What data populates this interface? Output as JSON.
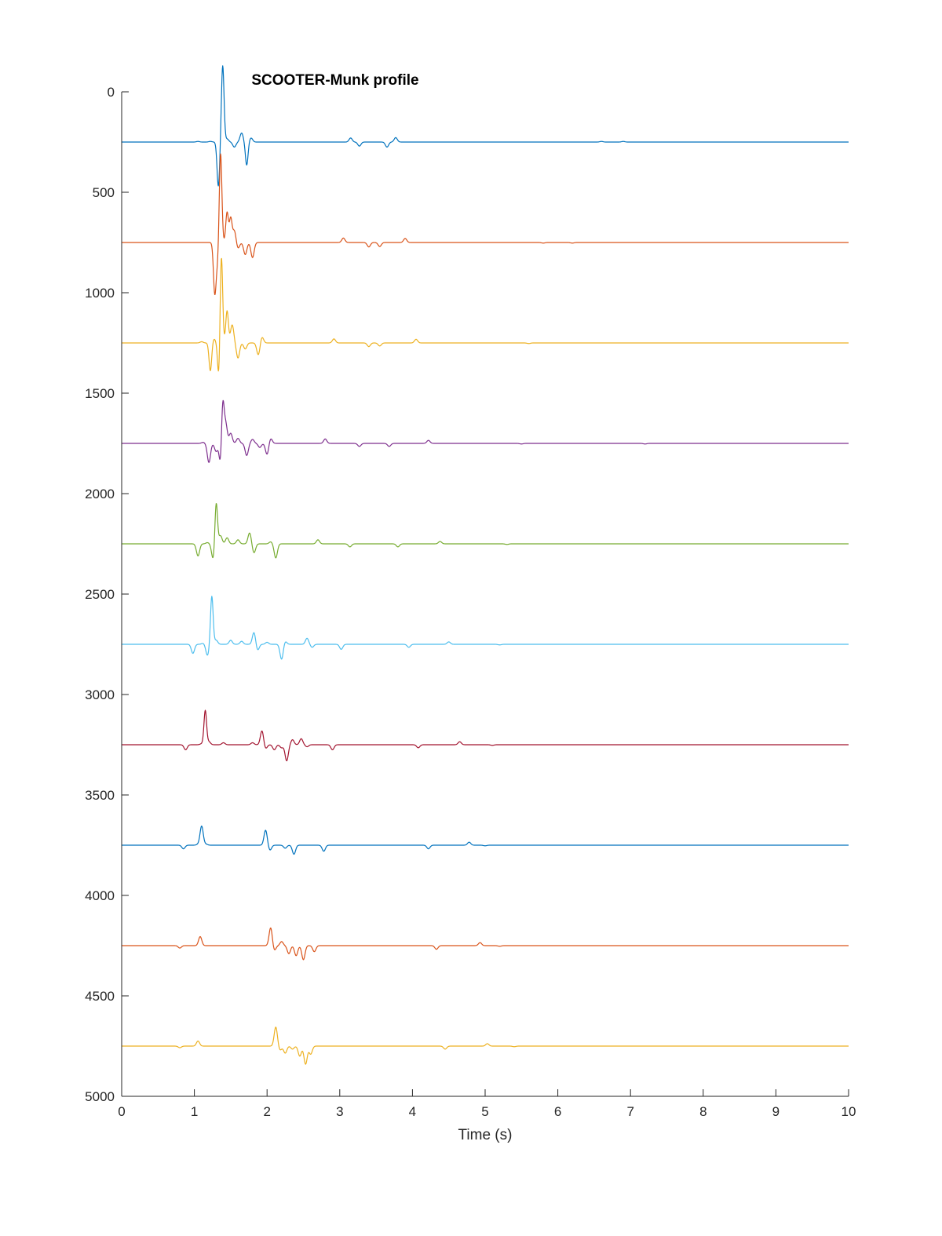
{
  "chart_data": {
    "type": "line",
    "title": "SCOOTER-Munk profile",
    "xlabel": "Time (s)",
    "ylabel": "",
    "xlim": [
      0,
      10
    ],
    "ylim": [
      0,
      5000
    ],
    "y_reversed": true,
    "grid": false,
    "x_ticks": [
      "0",
      "1",
      "2",
      "3",
      "4",
      "5",
      "6",
      "7",
      "8",
      "9",
      "10"
    ],
    "y_ticks": [
      "0",
      "500",
      "1000",
      "1500",
      "2000",
      "2500",
      "3000",
      "3500",
      "4000",
      "4500",
      "5000"
    ],
    "x_tick_values": [
      0,
      1,
      2,
      3,
      4,
      5,
      6,
      7,
      8,
      9,
      10
    ],
    "y_tick_values": [
      0,
      500,
      1000,
      1500,
      2000,
      2500,
      3000,
      3500,
      4000,
      4500,
      5000
    ],
    "series": [
      {
        "baseline": 250,
        "color": "#0072BD",
        "events": [
          [
            1.05,
            -3
          ],
          [
            1.22,
            -3
          ],
          [
            1.33,
            220
          ],
          [
            1.39,
            -380
          ],
          [
            1.45,
            -15
          ],
          [
            1.55,
            25
          ],
          [
            1.65,
            -45
          ],
          [
            1.72,
            115
          ],
          [
            1.78,
            -20
          ],
          [
            3.15,
            -20
          ],
          [
            3.27,
            20
          ],
          [
            3.65,
            25
          ],
          [
            3.77,
            -22
          ],
          [
            6.6,
            -3
          ],
          [
            6.9,
            -3
          ]
        ]
      },
      {
        "baseline": 750,
        "color": "#D95319",
        "events": [
          [
            1.28,
            240
          ],
          [
            1.32,
            100
          ],
          [
            1.36,
            -460
          ],
          [
            1.45,
            -150
          ],
          [
            1.5,
            -120
          ],
          [
            1.55,
            -60
          ],
          [
            1.6,
            30
          ],
          [
            1.7,
            60
          ],
          [
            1.8,
            75
          ],
          [
            3.05,
            -22
          ],
          [
            3.4,
            22
          ],
          [
            3.55,
            20
          ],
          [
            3.9,
            -20
          ],
          [
            5.8,
            3
          ],
          [
            6.2,
            3
          ]
        ]
      },
      {
        "baseline": 1250,
        "color": "#EDB120",
        "events": [
          [
            1.1,
            -6
          ],
          [
            1.22,
            140
          ],
          [
            1.27,
            -20
          ],
          [
            1.34,
            210
          ],
          [
            1.37,
            -470
          ],
          [
            1.45,
            -160
          ],
          [
            1.52,
            -90
          ],
          [
            1.6,
            75
          ],
          [
            1.7,
            30
          ],
          [
            1.88,
            60
          ],
          [
            1.93,
            -30
          ],
          [
            2.92,
            -20
          ],
          [
            3.4,
            18
          ],
          [
            3.55,
            15
          ],
          [
            4.05,
            -18
          ],
          [
            5.6,
            3
          ]
        ]
      },
      {
        "baseline": 1750,
        "color": "#7E2F8E",
        "events": [
          [
            1.12,
            -5
          ],
          [
            1.2,
            95
          ],
          [
            1.3,
            40
          ],
          [
            1.36,
            110
          ],
          [
            1.39,
            -210
          ],
          [
            1.43,
            -100
          ],
          [
            1.5,
            -50
          ],
          [
            1.6,
            -25
          ],
          [
            1.72,
            60
          ],
          [
            1.8,
            -20
          ],
          [
            1.9,
            20
          ],
          [
            2.0,
            55
          ],
          [
            2.05,
            -25
          ],
          [
            2.8,
            -22
          ],
          [
            3.27,
            15
          ],
          [
            3.68,
            15
          ],
          [
            4.22,
            -15
          ],
          [
            5.5,
            3
          ],
          [
            7.2,
            3
          ]
        ]
      },
      {
        "baseline": 2250,
        "color": "#77AC30",
        "events": [
          [
            1.05,
            60
          ],
          [
            1.18,
            -6
          ],
          [
            1.26,
            80
          ],
          [
            1.3,
            -215
          ],
          [
            1.36,
            -40
          ],
          [
            1.45,
            -30
          ],
          [
            1.6,
            -20
          ],
          [
            1.76,
            -55
          ],
          [
            1.82,
            45
          ],
          [
            2.05,
            -10
          ],
          [
            2.12,
            70
          ],
          [
            2.7,
            -20
          ],
          [
            3.14,
            15
          ],
          [
            3.8,
            15
          ],
          [
            4.38,
            -12
          ],
          [
            5.3,
            3
          ]
        ]
      },
      {
        "baseline": 2750,
        "color": "#4DBEEE",
        "events": [
          [
            0.98,
            45
          ],
          [
            1.12,
            -5
          ],
          [
            1.18,
            55
          ],
          [
            1.24,
            -240
          ],
          [
            1.3,
            -20
          ],
          [
            1.5,
            -20
          ],
          [
            1.65,
            -15
          ],
          [
            1.82,
            -60
          ],
          [
            1.87,
            30
          ],
          [
            2.0,
            -10
          ],
          [
            2.2,
            75
          ],
          [
            2.25,
            -15
          ],
          [
            2.55,
            -30
          ],
          [
            2.62,
            15
          ],
          [
            3.02,
            25
          ],
          [
            3.95,
            15
          ],
          [
            4.5,
            -12
          ],
          [
            5.2,
            3
          ]
        ]
      },
      {
        "baseline": 3250,
        "color": "#A2142F",
        "events": [
          [
            0.88,
            25
          ],
          [
            1.1,
            -5
          ],
          [
            1.15,
            -170
          ],
          [
            1.2,
            -15
          ],
          [
            1.4,
            -10
          ],
          [
            1.8,
            -10
          ],
          [
            1.93,
            -70
          ],
          [
            1.98,
            20
          ],
          [
            2.1,
            25
          ],
          [
            2.2,
            15
          ],
          [
            2.27,
            80
          ],
          [
            2.35,
            -25
          ],
          [
            2.47,
            -30
          ],
          [
            2.55,
            10
          ],
          [
            2.9,
            25
          ],
          [
            4.08,
            15
          ],
          [
            4.65,
            -15
          ],
          [
            5.1,
            3
          ]
        ]
      },
      {
        "baseline": 3750,
        "color": "#0072BD",
        "events": [
          [
            0.85,
            18
          ],
          [
            1.05,
            -4
          ],
          [
            1.1,
            -95
          ],
          [
            1.16,
            -5
          ],
          [
            1.98,
            -75
          ],
          [
            2.04,
            25
          ],
          [
            2.25,
            15
          ],
          [
            2.37,
            45
          ],
          [
            2.78,
            30
          ],
          [
            4.22,
            18
          ],
          [
            4.78,
            -15
          ],
          [
            5.0,
            3
          ]
        ]
      },
      {
        "baseline": 4250,
        "color": "#D95319",
        "events": [
          [
            0.8,
            12
          ],
          [
            1.08,
            -45
          ],
          [
            2.05,
            -90
          ],
          [
            2.1,
            25
          ],
          [
            2.2,
            -20
          ],
          [
            2.3,
            40
          ],
          [
            2.4,
            50
          ],
          [
            2.5,
            70
          ],
          [
            2.65,
            30
          ],
          [
            4.33,
            18
          ],
          [
            4.93,
            -15
          ],
          [
            5.2,
            3
          ]
        ]
      },
      {
        "baseline": 4750,
        "color": "#EDB120",
        "events": [
          [
            0.8,
            8
          ],
          [
            1.05,
            -25
          ],
          [
            2.12,
            -95
          ],
          [
            2.18,
            20
          ],
          [
            2.25,
            35
          ],
          [
            2.35,
            15
          ],
          [
            2.45,
            50
          ],
          [
            2.53,
            90
          ],
          [
            2.6,
            40
          ],
          [
            4.45,
            15
          ],
          [
            5.03,
            -12
          ],
          [
            5.4,
            3
          ]
        ]
      }
    ]
  }
}
